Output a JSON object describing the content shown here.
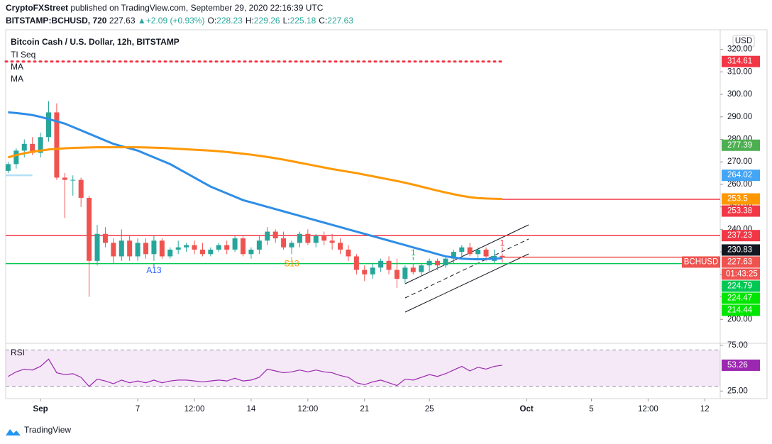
{
  "chart_data": {
    "type": "candlestick",
    "publisher": "CryptoFXStreet",
    "published": "published on TradingView.com, September 29, 2020 22:16:39 UTC",
    "symbol": "BITSTAMP:BCHUSD, 720",
    "last": 227.63,
    "arrow": "▲",
    "change": "+2.09 (+0.93%)",
    "ohlc": [
      {
        "label": "O:",
        "value": 228.23
      },
      {
        "label": "H:",
        "value": 229.26
      },
      {
        "label": "L:",
        "value": 225.18
      },
      {
        "label": "C:",
        "value": 227.63
      }
    ],
    "title": "Bitcoin Cash / U.S. Dollar, 12h, BITSTAMP",
    "indicators": [
      "TI Seq",
      "MA",
      "MA"
    ],
    "currency": "USD",
    "ylim": [
      190,
      328.7
    ],
    "yticks": [
      {
        "value": 200,
        "label": "200.00"
      },
      {
        "value": 210,
        "label": "210.00"
      },
      {
        "value": 220,
        "label": "220.00"
      },
      {
        "value": 230,
        "label": "230.00"
      },
      {
        "value": 240,
        "label": "240.00"
      },
      {
        "value": 250,
        "label": "250.00"
      },
      {
        "value": 260,
        "label": "260.00"
      },
      {
        "value": 270,
        "label": "270.00"
      },
      {
        "value": 280,
        "label": "280.00"
      },
      {
        "value": 290,
        "label": "290.00"
      },
      {
        "value": 300,
        "label": "300.00"
      },
      {
        "value": 310,
        "label": "310.00"
      },
      {
        "value": 320,
        "label": "320.00"
      }
    ],
    "xlim": [
      -4.3,
      83.9
    ],
    "xticks": [
      {
        "value": 0,
        "label": "Sep"
      },
      {
        "value": 12,
        "label": "7"
      },
      {
        "value": 19,
        "label": "12:00"
      },
      {
        "value": 26,
        "label": "14"
      },
      {
        "value": 33,
        "label": "12:00"
      },
      {
        "value": 40,
        "label": "21"
      },
      {
        "value": 48,
        "label": "25"
      },
      {
        "value": 60,
        "label": "Oct"
      },
      {
        "value": 68,
        "label": "5"
      },
      {
        "value": 75,
        "label": "12:00"
      },
      {
        "value": 82,
        "label": "12"
      }
    ],
    "x": [
      -4,
      -3,
      -2,
      -1,
      0,
      1,
      2,
      3,
      4,
      5,
      6,
      7,
      8,
      9,
      10,
      11,
      12,
      13,
      14,
      15,
      16,
      17,
      18,
      19,
      20,
      21,
      22,
      23,
      24,
      25,
      26,
      27,
      28,
      29,
      30,
      31,
      32,
      33,
      34,
      35,
      36,
      37,
      38,
      39,
      40,
      41,
      42,
      43,
      44,
      45,
      46,
      47,
      48,
      49,
      50,
      51,
      52,
      53,
      54,
      55,
      56,
      57
    ],
    "open": [
      266,
      269,
      275,
      278,
      274,
      281,
      292,
      263,
      262,
      262,
      254,
      226,
      238,
      234,
      228,
      235,
      228,
      234,
      229,
      235,
      228,
      231,
      232,
      233,
      231,
      229,
      231,
      233,
      231,
      236,
      229,
      231,
      235,
      239,
      236,
      232,
      234,
      238,
      234,
      237,
      235,
      234,
      231,
      228,
      222,
      220,
      223,
      226,
      222,
      218,
      223,
      221,
      224,
      226,
      224,
      227,
      230,
      232,
      229,
      231,
      226,
      228.23
    ],
    "high": [
      270,
      276,
      280,
      281,
      283,
      297,
      296,
      265,
      264,
      263,
      255,
      242,
      241,
      236,
      240,
      237,
      236,
      236,
      237,
      236,
      232,
      235,
      234,
      235,
      234,
      232,
      234,
      235,
      237,
      237,
      232,
      237,
      241,
      240,
      239,
      235,
      239,
      240,
      238,
      239,
      238,
      236,
      233,
      229,
      224,
      225,
      227,
      228,
      227,
      224,
      225,
      225,
      227,
      227,
      228,
      231,
      233,
      234,
      232,
      232,
      231,
      229.26
    ],
    "low": [
      265,
      267,
      272,
      273,
      272,
      279,
      262,
      245,
      255,
      250,
      210,
      224,
      232,
      225,
      226,
      226,
      226,
      227,
      226,
      227,
      227,
      229,
      230,
      229,
      228,
      228,
      230,
      229,
      230,
      228,
      227,
      229,
      233,
      234,
      231,
      229,
      232,
      233,
      232,
      233,
      231,
      229,
      226,
      220,
      217,
      218,
      221,
      220,
      214,
      216,
      220,
      219,
      221,
      222,
      223,
      225,
      227,
      228,
      227,
      226,
      225,
      225.18
    ],
    "close": [
      269,
      275,
      278,
      274,
      281,
      292,
      263,
      262,
      262,
      254,
      226,
      238,
      234,
      228,
      235,
      228,
      234,
      229,
      235,
      228,
      231,
      232,
      233,
      231,
      229,
      231,
      233,
      231,
      236,
      229,
      231,
      235,
      239,
      236,
      232,
      234,
      238,
      234,
      237,
      235,
      234,
      231,
      228,
      222,
      220,
      223,
      226,
      222,
      218,
      223,
      221,
      224,
      226,
      224,
      227,
      230,
      232,
      229,
      231,
      228,
      228.2,
      227.63
    ],
    "up_color": "#26a69a",
    "down_color": "#ef5350",
    "series": [
      {
        "name": "MA",
        "color": "#2e8de6",
        "values": [
          292,
          291.7,
          291.3,
          290.8,
          290,
          289,
          288,
          287,
          285.5,
          284,
          282.5,
          281,
          279.5,
          278,
          277,
          276,
          275,
          273.5,
          272,
          270.5,
          269,
          267,
          265,
          263,
          261,
          259,
          257.5,
          256,
          254.5,
          253,
          252,
          251,
          250,
          249,
          248,
          247,
          246,
          245,
          244,
          243,
          242,
          241,
          240,
          239,
          238,
          237,
          236,
          235,
          234,
          233,
          232,
          231,
          230,
          229,
          228,
          227.5,
          227,
          226.8,
          226.7,
          226.8,
          227,
          227.2
        ]
      },
      {
        "name": "MA",
        "color": "#ff9800",
        "values": [
          272,
          273,
          273.8,
          274.5,
          275,
          275.5,
          275.8,
          276,
          276.2,
          276.3,
          276.4,
          276.5,
          276.5,
          276.5,
          276.5,
          276.5,
          276.5,
          276.4,
          276.3,
          276.2,
          276,
          275.8,
          275.6,
          275.4,
          275.2,
          275,
          274.7,
          274.4,
          274,
          273.6,
          273.2,
          272.7,
          272.2,
          271.6,
          271,
          270.3,
          269.6,
          268.9,
          268.2,
          267.5,
          266.8,
          266.2,
          265.6,
          265,
          264.3,
          263.6,
          262.9,
          262.2,
          261.5,
          260.7,
          259.9,
          259,
          258.1,
          257.2,
          256.4,
          255.6,
          254.9,
          254.3,
          253.9,
          253.7,
          253.6,
          253.5
        ]
      }
    ],
    "levels": [
      {
        "value": 314.61,
        "color": "#f23645",
        "line": "dotted"
      },
      {
        "value": 277.39,
        "color": "#4caf50",
        "line": "none"
      },
      {
        "value": 264.02,
        "color": "#42a5f5",
        "line": "left"
      },
      {
        "value": 253.5,
        "color": "#ff9800",
        "line": "none"
      },
      {
        "value": 253.38,
        "color": "#f23645",
        "line": "from_last"
      },
      {
        "value": 237.23,
        "color": "#f23645",
        "line": "full"
      },
      {
        "value": 230.83,
        "color": "#131722",
        "line": "none"
      },
      {
        "value": 227.63,
        "color": "#ef5350",
        "line": "from_last",
        "name": "BCHUSD",
        "countdown": "01:43:25"
      },
      {
        "value": 224.79,
        "color": "#00c853",
        "line": "full"
      },
      {
        "value": 224.47,
        "color": "#00e600",
        "line": "none"
      },
      {
        "value": 214.44,
        "color": "#00e600",
        "line": "none"
      }
    ],
    "annotations": [
      {
        "text": "A13",
        "x": 14,
        "color": "#2962ff",
        "place": "below"
      },
      {
        "text": "S13",
        "x": 31,
        "color": "#ff9800",
        "place": "below"
      },
      {
        "text": "1",
        "x": 46,
        "color": "#00c853",
        "place": "above"
      },
      {
        "text": "1",
        "x": 57,
        "color": "#f23645",
        "place": "above"
      }
    ],
    "rsi": {
      "name": "RSI",
      "color": "#9c27b0",
      "ylim": [
        16.7,
        77.3
      ],
      "yticks": [
        {
          "value": 75,
          "label": "75.00"
        },
        {
          "value": 25,
          "label": "25.00"
        }
      ],
      "band": [
        30,
        70
      ],
      "values": [
        41,
        46,
        49,
        48,
        52,
        60,
        45,
        43,
        44,
        40,
        30,
        38,
        36,
        33,
        37,
        34,
        36,
        34,
        37,
        34,
        36,
        37,
        37,
        36,
        35,
        36,
        37,
        36,
        39,
        36,
        37,
        40,
        49,
        47,
        45,
        46,
        48,
        46,
        48,
        46,
        45,
        42,
        40,
        34,
        32,
        35,
        37,
        34,
        31,
        38,
        37,
        40,
        43,
        41,
        44,
        48,
        52,
        47,
        51,
        49,
        52,
        53.26
      ]
    },
    "brand": "TradingView"
  }
}
